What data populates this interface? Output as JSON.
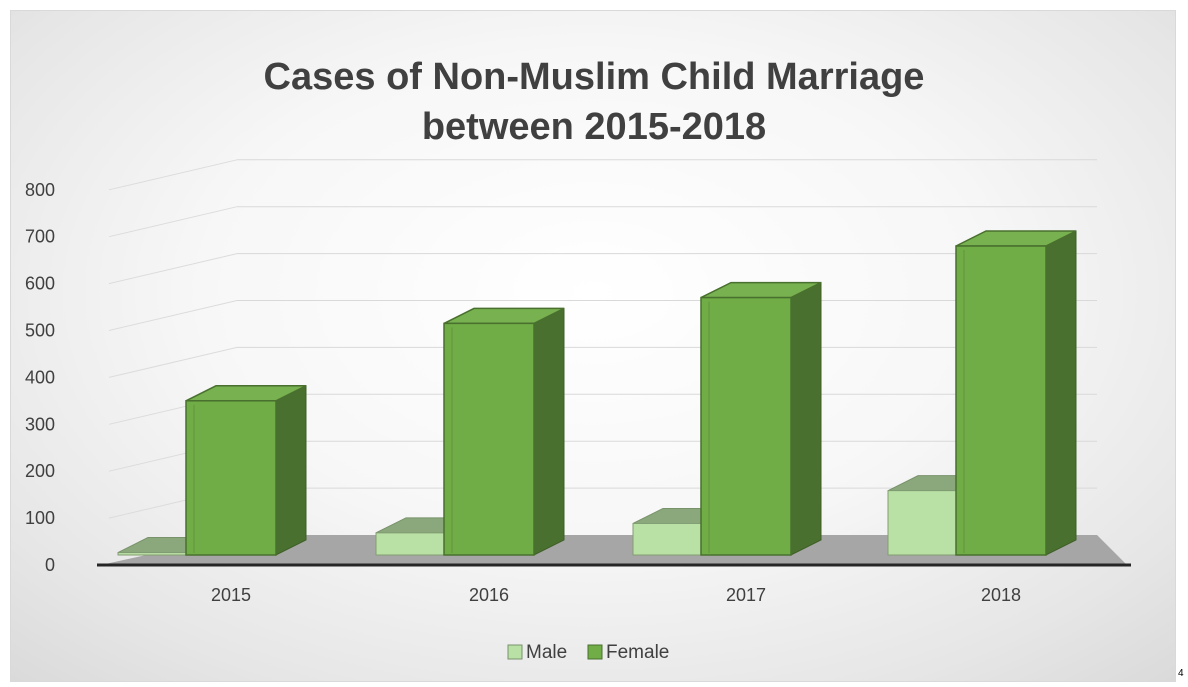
{
  "page": {
    "corner_text": "4"
  },
  "chart_data": {
    "type": "bar",
    "title": [
      "Cases of Non-Muslim Child Marriage",
      "between 2015-2018"
    ],
    "categories": [
      "2015",
      "2016",
      "2017",
      "2018"
    ],
    "y_ticks": [
      "0",
      "100",
      "200",
      "300",
      "400",
      "500",
      "600",
      "700",
      "800"
    ],
    "ylim": [
      0,
      800
    ],
    "grid": true,
    "legend_position": "bottom",
    "series": [
      {
        "name": "Male",
        "values": [
          18,
          60,
          80,
          150
        ],
        "color": "#b9e0a5"
      },
      {
        "name": "Female",
        "values": [
          380,
          545,
          600,
          710
        ],
        "color": "#70ad47"
      }
    ]
  }
}
